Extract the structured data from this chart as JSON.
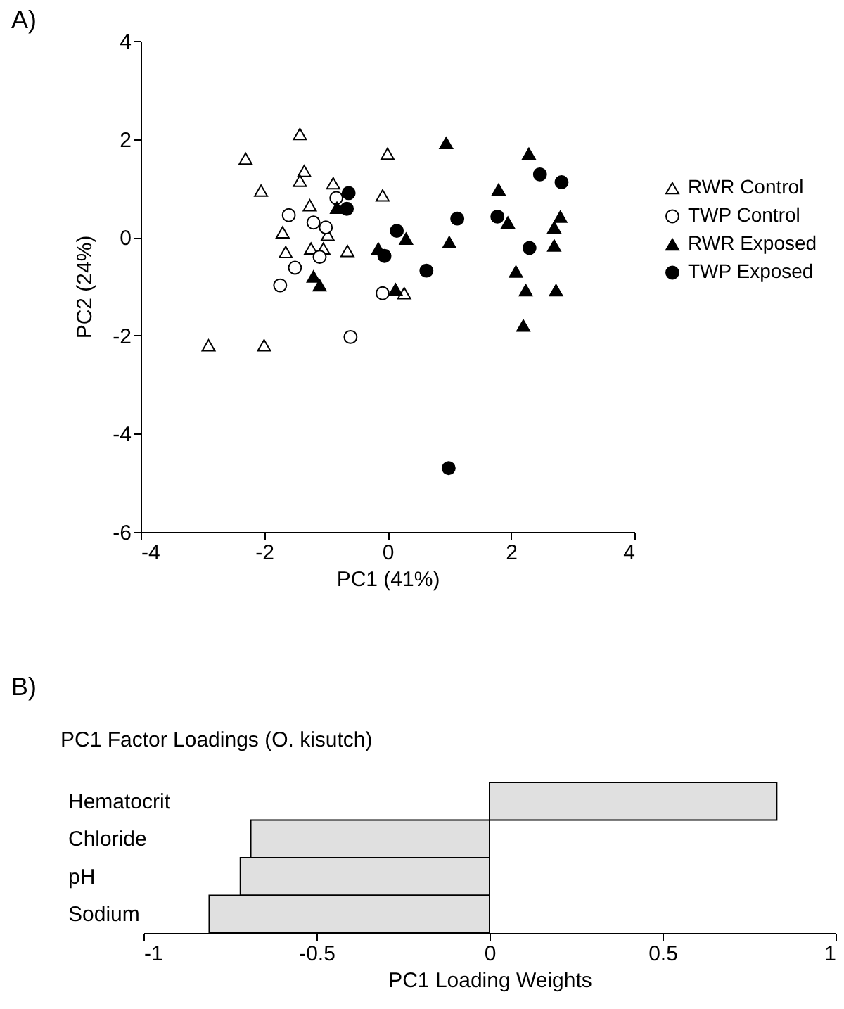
{
  "chart_data": [
    {
      "type": "scatter",
      "xlabel": "PC1 (41%)",
      "ylabel": "PC2 (24%)",
      "annotations": [
        "A)"
      ],
      "xlim": [
        -4,
        4
      ],
      "ylim": [
        -6,
        4
      ],
      "xticks": [
        -4,
        -2,
        0,
        2,
        4
      ],
      "yticks": [
        -6,
        -4,
        -2,
        0,
        2,
        4
      ],
      "legend": "right",
      "series": [
        {
          "name": "RWR Control",
          "color": "#ffffff",
          "marker": "triangle",
          "x": [
            -2.9,
            -2.0,
            -2.3,
            -2.05,
            -1.42,
            -1.35,
            -1.42,
            -1.26,
            -1.7,
            -1.65,
            -1.24,
            -1.04,
            -0.88,
            -0.65,
            -0.97,
            0.0,
            -0.08,
            0.27
          ],
          "values": [
            -2.2,
            -2.2,
            1.6,
            0.95,
            2.1,
            1.35,
            1.15,
            0.65,
            0.1,
            -0.3,
            -0.23,
            -0.23,
            1.1,
            -0.28,
            0.05,
            1.7,
            0.85,
            -1.14
          ]
        },
        {
          "name": "TWP Control",
          "color": "#ffffff",
          "marker": "circle",
          "x": [
            -1.6,
            -1.2,
            -1.0,
            -1.1,
            -1.5,
            -1.74,
            -0.83,
            -0.08,
            -0.6
          ],
          "values": [
            0.45,
            0.3,
            0.2,
            -0.4,
            -0.62,
            -0.98,
            0.8,
            -1.14,
            -2.03
          ]
        },
        {
          "name": "RWR Exposed",
          "color": "#000000",
          "marker": "triangle",
          "x": [
            -1.2,
            -1.1,
            -0.82,
            -0.15,
            0.13,
            0.3,
            0.95,
            1.0,
            1.8,
            1.95,
            2.29,
            2.08,
            2.24,
            2.2,
            2.8,
            2.7,
            2.7,
            2.73
          ],
          "values": [
            -0.8,
            -0.98,
            0.6,
            -0.23,
            -1.06,
            -0.03,
            1.92,
            -0.1,
            0.97,
            0.3,
            1.7,
            -0.7,
            -1.08,
            -1.8,
            0.42,
            0.2,
            -0.17,
            -1.08
          ]
        },
        {
          "name": "TWP Exposed",
          "color": "#000000",
          "marker": "circle",
          "x": [
            -0.63,
            -0.66,
            0.15,
            -0.05,
            0.63,
            1.13,
            1.78,
            2.47,
            2.82,
            2.3,
            0.99
          ],
          "values": [
            0.9,
            0.58,
            0.13,
            -0.38,
            -0.68,
            0.38,
            0.42,
            1.28,
            1.12,
            -0.22,
            -4.7
          ]
        }
      ]
    },
    {
      "type": "bar",
      "orientation": "horizontal",
      "title": "PC1 Factor Loadings (O. kisutch)",
      "xlabel": "PC1 Loading Weights",
      "annotations": [
        "B)"
      ],
      "categories": [
        "Hematocrit",
        "Chloride",
        "pH",
        "Sodium"
      ],
      "values": [
        0.83,
        -0.69,
        -0.72,
        -0.81
      ],
      "color": "#e0e0e0",
      "xlim": [
        -1,
        1
      ],
      "xticks": [
        -1,
        -0.5,
        0,
        0.5,
        1
      ]
    }
  ]
}
